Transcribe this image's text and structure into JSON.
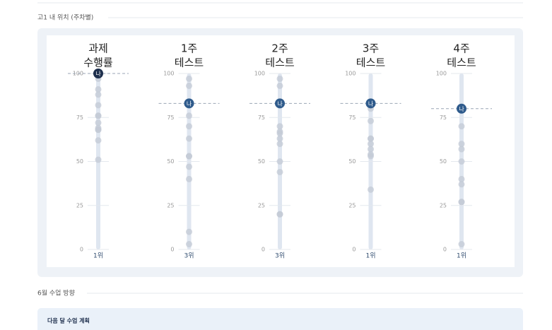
{
  "sections": {
    "position_title": "고1 내 위치 (주차별)",
    "direction_title": "6월 수업 방향",
    "plan_title": "다음 달 수업 계획"
  },
  "chart_data": [
    {
      "type": "strip",
      "title": [
        "과제",
        "수행률"
      ],
      "values": [
        97,
        91,
        88,
        82,
        76,
        76,
        72,
        69,
        68,
        68,
        62,
        51
      ],
      "me": 100,
      "me_label": "나",
      "rank_label": "1위",
      "ylim": [
        0,
        100
      ],
      "yticks": [
        0,
        25,
        50,
        75,
        100
      ],
      "color": "#c3cad6",
      "me_color": "#1e2f4d"
    },
    {
      "type": "strip",
      "title": [
        "1주",
        "테스트"
      ],
      "values": [
        97,
        93,
        76,
        70,
        63,
        53,
        53,
        47,
        40,
        10,
        3
      ],
      "me": 83,
      "me_label": "나",
      "rank_label": "3위",
      "ylim": [
        0,
        100
      ],
      "yticks": [
        0,
        25,
        50,
        75,
        100
      ],
      "color": "#c3cad6",
      "me_color": "#2f5b8c"
    },
    {
      "type": "strip",
      "title": [
        "2주",
        "테스트"
      ],
      "values": [
        97,
        93,
        70,
        67,
        66,
        63,
        60,
        50,
        44,
        20,
        20
      ],
      "me": 83,
      "me_label": "나",
      "rank_label": "3위",
      "ylim": [
        0,
        100
      ],
      "yticks": [
        0,
        25,
        50,
        75,
        100
      ],
      "color": "#c3cad6",
      "me_color": "#2f5b8c"
    },
    {
      "type": "strip",
      "title": [
        "3주",
        "테스트"
      ],
      "values": [
        80,
        73,
        63,
        63,
        60,
        57,
        54,
        53,
        34
      ],
      "me": 83,
      "me_label": "나",
      "rank_label": "1위",
      "ylim": [
        0,
        100
      ],
      "yticks": [
        0,
        25,
        50,
        75,
        100
      ],
      "color": "#c3cad6",
      "me_color": "#2f5b8c"
    },
    {
      "type": "strip",
      "title": [
        "4주",
        "테스트"
      ],
      "values": [
        70,
        60,
        57,
        50,
        40,
        37,
        27,
        27,
        3
      ],
      "me": 80,
      "me_label": "나",
      "rank_label": "1위",
      "ylim": [
        0,
        100
      ],
      "yticks": [
        0,
        25,
        50,
        75,
        100
      ],
      "color": "#c3cad6",
      "me_color": "#2f5b8c"
    }
  ]
}
